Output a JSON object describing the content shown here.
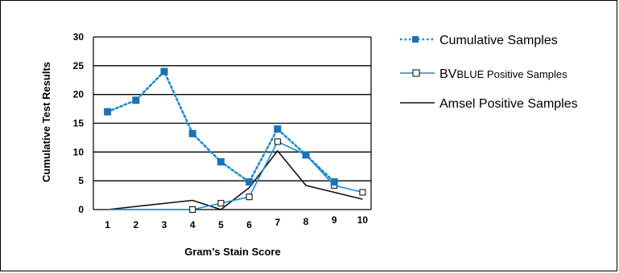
{
  "chart_data": {
    "type": "line",
    "title": "",
    "xlabel": "Gram’s Stain Score",
    "ylabel": "Cumulative Test Results",
    "xlim": [
      0.5,
      10.3
    ],
    "ylim": [
      0,
      30
    ],
    "x_ticks": [
      1,
      2,
      3,
      4,
      5,
      6,
      7,
      8,
      9,
      10
    ],
    "y_ticks": [
      0,
      5,
      10,
      15,
      20,
      25,
      30
    ],
    "grid": "horizontal",
    "legend_position": "right",
    "series": [
      {
        "name": "Cumulative Samples",
        "style": "dotted",
        "marker": "filled-square",
        "color": "#1a8cc8",
        "markerColor": "#1a73b8",
        "x": [
          1,
          2,
          3,
          4,
          5,
          6,
          7,
          8,
          9
        ],
        "y": [
          17,
          19,
          24,
          13.2,
          8.3,
          4.8,
          14,
          9.5,
          4.8
        ]
      },
      {
        "name": "BVBLUE Positive Samples",
        "style": "solid",
        "marker": "open-square",
        "color": "#1a8cc8",
        "x": [
          1,
          4,
          5,
          6,
          7,
          8,
          9,
          10
        ],
        "y": [
          0,
          0,
          1.1,
          2.2,
          11.8,
          9.5,
          4.2,
          3.0
        ]
      },
      {
        "name": "Amsel Positive Samples",
        "style": "solid",
        "marker": "none",
        "color": "#111111",
        "x": [
          1,
          4,
          5,
          6,
          7,
          8,
          9,
          10
        ],
        "y": [
          0,
          1.6,
          0,
          3.8,
          10.2,
          4.2,
          3.0,
          1.8
        ]
      }
    ]
  },
  "legend": {
    "items": [
      {
        "prefix": "",
        "label": "Cumulative Samples"
      },
      {
        "prefix": "BV",
        "label": "BLUE Positive Samples"
      },
      {
        "prefix": "",
        "label": "Amsel Positive Samples"
      }
    ]
  }
}
